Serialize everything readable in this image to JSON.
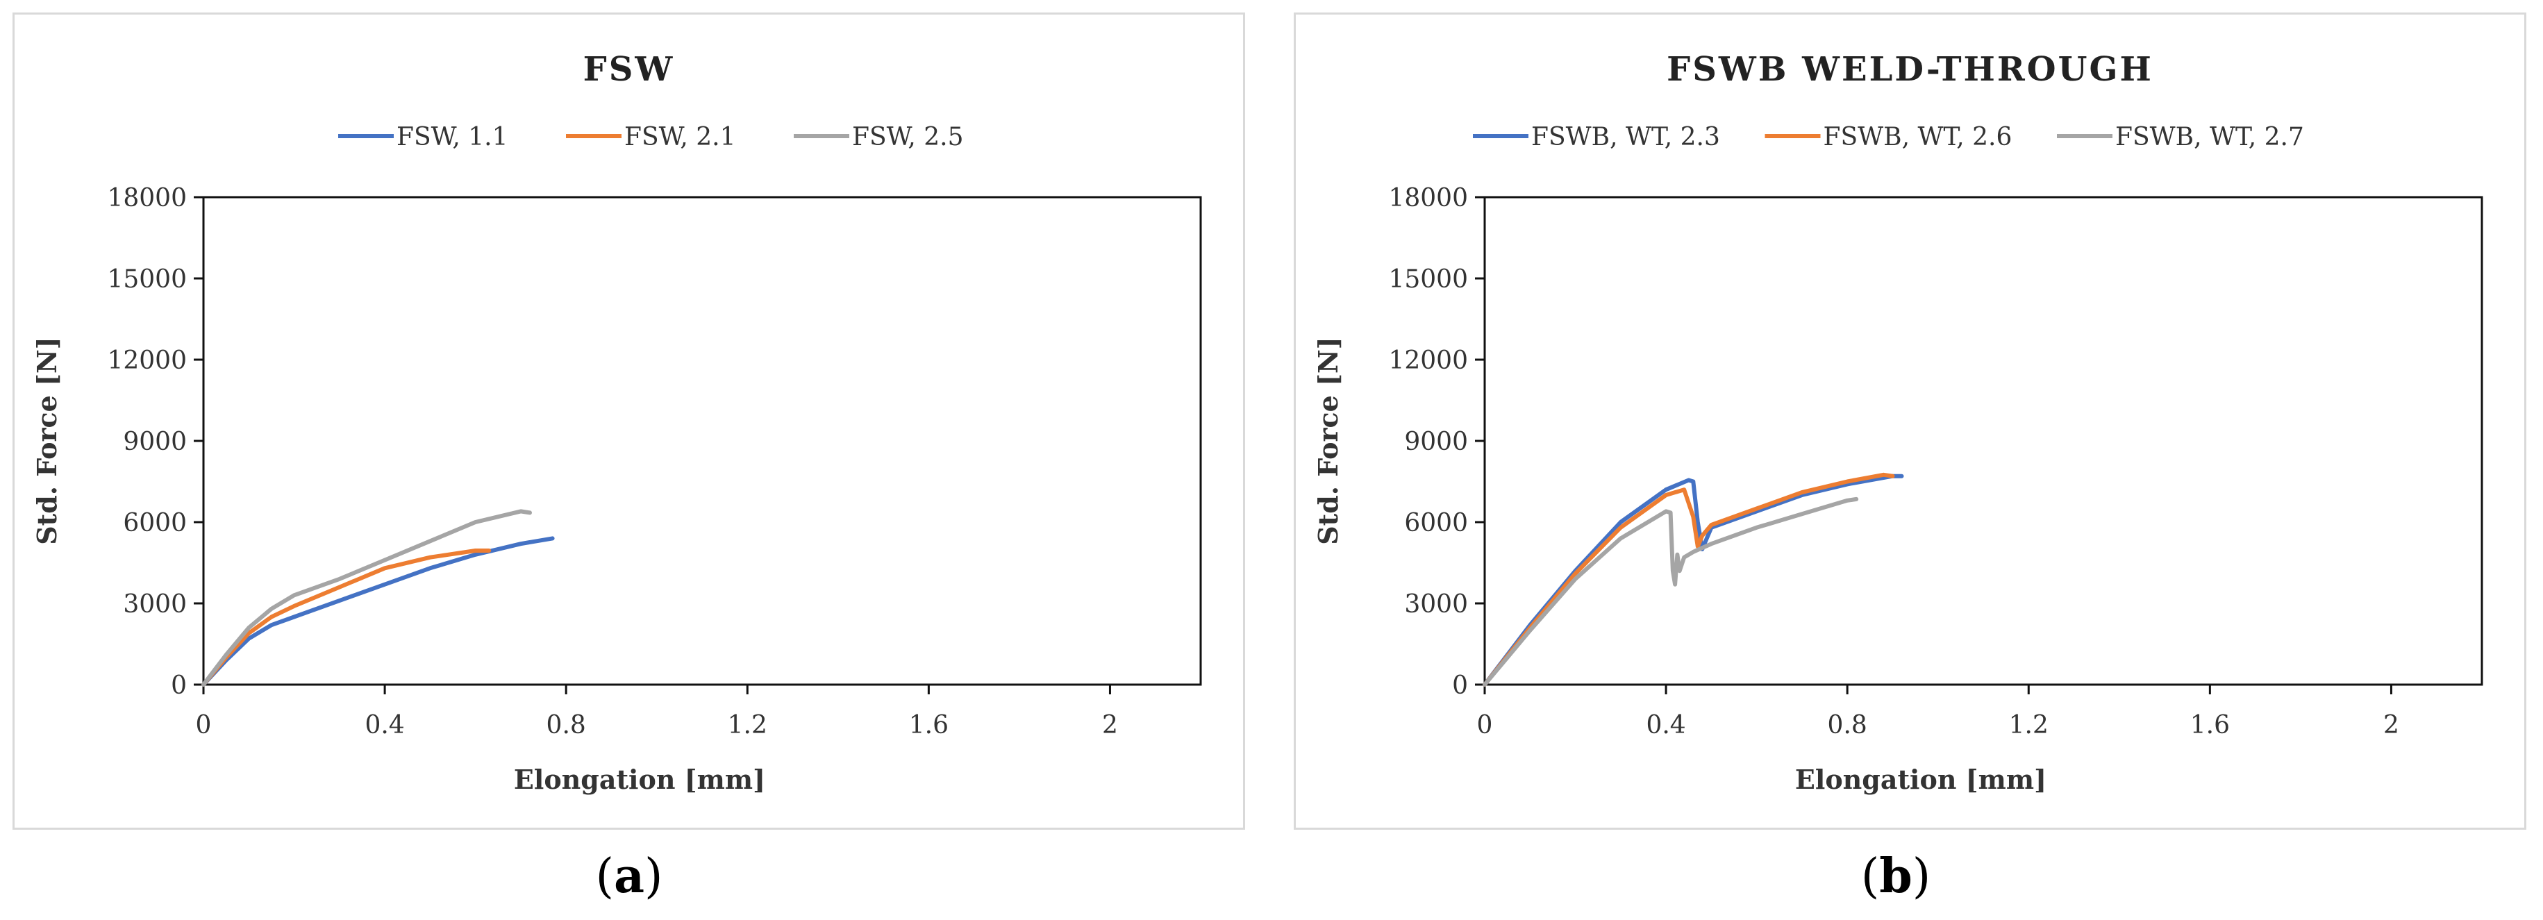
{
  "panels": [
    {
      "caption_letter": "a",
      "chart_data": {
        "type": "line",
        "title": "FSW",
        "xlabel": "Elongation [mm]",
        "ylabel": "Std. Force [N]",
        "xlim": [
          0,
          2.2
        ],
        "ylim": [
          0,
          18000
        ],
        "xticks": [
          0,
          0.4,
          0.8,
          1.2,
          1.6,
          2
        ],
        "xtick_labels": [
          "0",
          "0.4",
          "0.8",
          "1.2",
          "1.6",
          "2"
        ],
        "yticks": [
          0,
          3000,
          6000,
          9000,
          12000,
          15000,
          18000
        ],
        "ytick_labels": [
          "0",
          "3000",
          "6000",
          "9000",
          "12000",
          "15000",
          "18000"
        ],
        "grid": false,
        "legend_position": "top",
        "series": [
          {
            "name": "FSW, 1.1",
            "color": "#4472C4",
            "x": [
              0,
              0.05,
              0.1,
              0.15,
              0.2,
              0.3,
              0.4,
              0.5,
              0.6,
              0.7,
              0.77
            ],
            "y": [
              0,
              900,
              1700,
              2200,
              2500,
              3100,
              3700,
              4300,
              4800,
              5200,
              5400
            ]
          },
          {
            "name": "FSW, 2.1",
            "color": "#ED7D31",
            "x": [
              0,
              0.05,
              0.1,
              0.15,
              0.2,
              0.3,
              0.4,
              0.5,
              0.6,
              0.63
            ],
            "y": [
              0,
              1000,
              1900,
              2500,
              2900,
              3600,
              4300,
              4700,
              4950,
              4950
            ]
          },
          {
            "name": "FSW, 2.5",
            "color": "#A5A5A5",
            "x": [
              0,
              0.05,
              0.1,
              0.15,
              0.2,
              0.3,
              0.4,
              0.5,
              0.6,
              0.7,
              0.72
            ],
            "y": [
              0,
              1100,
              2100,
              2800,
              3300,
              3900,
              4600,
              5300,
              6000,
              6400,
              6350
            ]
          }
        ]
      }
    },
    {
      "caption_letter": "b",
      "chart_data": {
        "type": "line",
        "title": "FSWB WELD-THROUGH",
        "xlabel": "Elongation [mm]",
        "ylabel": "Std. Force [N]",
        "xlim": [
          0,
          2.2
        ],
        "ylim": [
          0,
          18000
        ],
        "xticks": [
          0,
          0.4,
          0.8,
          1.2,
          1.6,
          2
        ],
        "xtick_labels": [
          "0",
          "0.4",
          "0.8",
          "1.2",
          "1.6",
          "2"
        ],
        "yticks": [
          0,
          3000,
          6000,
          9000,
          12000,
          15000,
          18000
        ],
        "ytick_labels": [
          "0",
          "3000",
          "6000",
          "9000",
          "12000",
          "15000",
          "18000"
        ],
        "grid": false,
        "legend_position": "top",
        "series": [
          {
            "name": "FSWB, WT, 2.3",
            "color": "#4472C4",
            "x": [
              0,
              0.1,
              0.2,
              0.3,
              0.4,
              0.45,
              0.46,
              0.47,
              0.48,
              0.49,
              0.5,
              0.6,
              0.7,
              0.8,
              0.9,
              0.92
            ],
            "y": [
              0,
              2200,
              4200,
              6000,
              7200,
              7550,
              7500,
              6000,
              5000,
              5400,
              5800,
              6400,
              7000,
              7400,
              7700,
              7700
            ]
          },
          {
            "name": "FSWB, WT, 2.6",
            "color": "#ED7D31",
            "x": [
              0,
              0.1,
              0.2,
              0.3,
              0.4,
              0.44,
              0.46,
              0.47,
              0.48,
              0.5,
              0.6,
              0.7,
              0.8,
              0.88,
              0.9
            ],
            "y": [
              0,
              2100,
              4100,
              5800,
              7000,
              7200,
              6200,
              5100,
              5500,
              5900,
              6500,
              7100,
              7500,
              7750,
              7700
            ]
          },
          {
            "name": "FSWB, WT, 2.7",
            "color": "#A5A5A5",
            "x": [
              0,
              0.1,
              0.2,
              0.3,
              0.4,
              0.41,
              0.415,
              0.42,
              0.425,
              0.43,
              0.44,
              0.46,
              0.5,
              0.6,
              0.7,
              0.8,
              0.82
            ],
            "y": [
              0,
              2000,
              3900,
              5400,
              6400,
              6350,
              4200,
              3700,
              4800,
              4200,
              4700,
              4900,
              5200,
              5800,
              6300,
              6800,
              6850
            ]
          }
        ]
      }
    }
  ]
}
